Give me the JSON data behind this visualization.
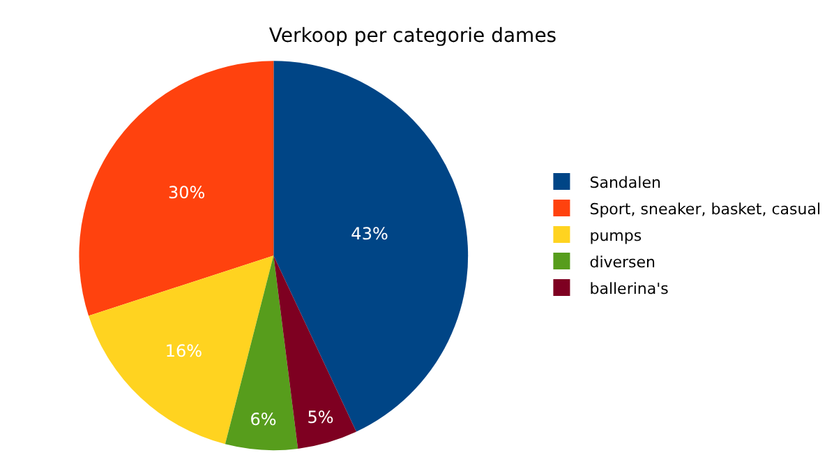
{
  "chart_data": {
    "type": "pie",
    "title": "Verkoop per categorie dames",
    "categories": [
      "Sandalen",
      "Sport, sneaker, basket, casual",
      "pumps",
      "diversen",
      "ballerina's"
    ],
    "values": [
      43,
      30,
      16,
      6,
      5
    ],
    "colors": [
      "#004586",
      "#ff420e",
      "#ffd320",
      "#579d1c",
      "#7e0021"
    ],
    "value_labels": [
      "43%",
      "30%",
      "16%",
      "6%",
      "5%"
    ],
    "legend": "right"
  }
}
